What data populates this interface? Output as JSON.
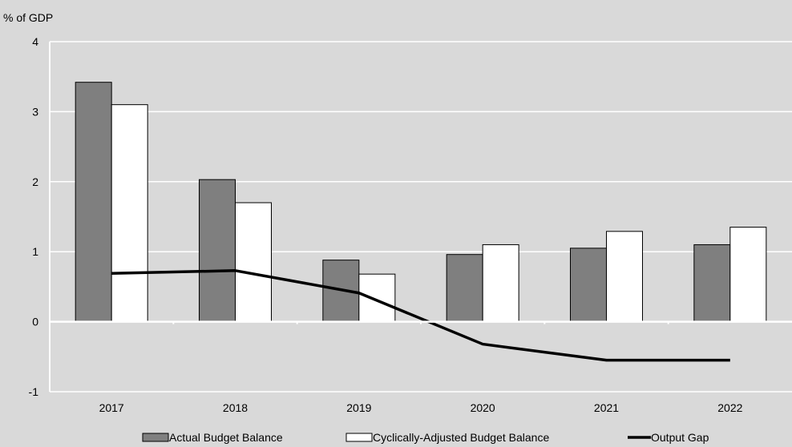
{
  "chart_data": {
    "type": "bar",
    "unit_label": "% of GDP",
    "categories": [
      "2017",
      "2018",
      "2019",
      "2020",
      "2021",
      "2022"
    ],
    "ylim": [
      -1,
      4
    ],
    "yticks": [
      "-1",
      "0",
      "1",
      "2",
      "3",
      "4"
    ],
    "grid": true,
    "legend_position": "bottom",
    "series": [
      {
        "name": "Actual Budget Balance",
        "kind": "bar",
        "color": "#7f7f7f",
        "values": [
          3.42,
          2.03,
          0.88,
          0.96,
          1.05,
          1.1
        ]
      },
      {
        "name": "Cyclically-Adjusted Budget Balance",
        "kind": "bar",
        "color": "#ffffff",
        "values": [
          3.1,
          1.7,
          0.68,
          1.1,
          1.29,
          1.35
        ]
      },
      {
        "name": "Output Gap",
        "kind": "line",
        "color": "#000000",
        "values": [
          0.69,
          0.73,
          0.41,
          -0.32,
          -0.55,
          -0.55
        ]
      }
    ]
  }
}
